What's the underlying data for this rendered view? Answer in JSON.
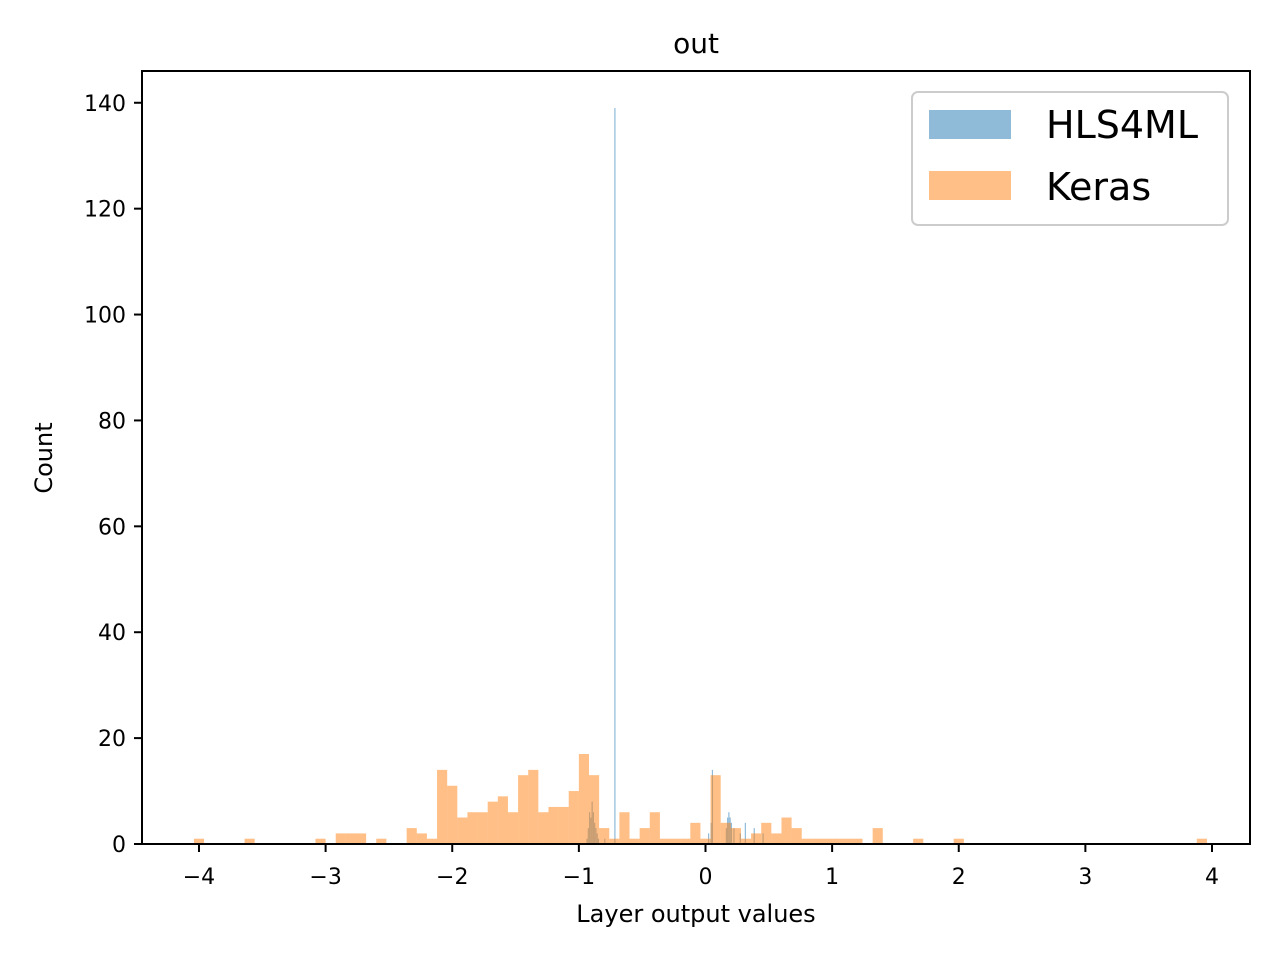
{
  "chart_data": {
    "type": "bar",
    "title": "out",
    "xlabel": "Layer output values",
    "ylabel": "Count",
    "xlim": [
      -4.45,
      4.3
    ],
    "ylim": [
      0,
      146
    ],
    "x_ticks": [
      -4,
      -3,
      -2,
      -1,
      0,
      1,
      2,
      3,
      4
    ],
    "x_tick_labels": [
      "−4",
      "−3",
      "−2",
      "−1",
      "0",
      "1",
      "2",
      "3",
      "4"
    ],
    "y_ticks": [
      0,
      20,
      40,
      60,
      80,
      100,
      120,
      140
    ],
    "y_tick_labels": [
      "0",
      "20",
      "40",
      "60",
      "80",
      "100",
      "120",
      "140"
    ],
    "grid": false,
    "legend_position": "top-right",
    "series": [
      {
        "name": "HLS4ML",
        "color": "#1f77b4",
        "opacity": 0.5,
        "bin_width": 0.008,
        "bins": [
          [
            -0.94,
            1
          ],
          [
            -0.93,
            3
          ],
          [
            -0.92,
            6
          ],
          [
            -0.91,
            5
          ],
          [
            -0.9,
            8
          ],
          [
            -0.89,
            6
          ],
          [
            -0.88,
            4
          ],
          [
            -0.87,
            3
          ],
          [
            -0.86,
            2
          ],
          [
            -0.85,
            1
          ],
          [
            -0.8,
            1
          ],
          [
            -0.72,
            139
          ],
          [
            0.02,
            2
          ],
          [
            0.04,
            4
          ],
          [
            0.05,
            14
          ],
          [
            0.16,
            3
          ],
          [
            0.17,
            5
          ],
          [
            0.18,
            6
          ],
          [
            0.19,
            5
          ],
          [
            0.2,
            4
          ],
          [
            0.22,
            3
          ],
          [
            0.27,
            2
          ],
          [
            0.31,
            4
          ],
          [
            0.38,
            3
          ],
          [
            0.45,
            2
          ]
        ]
      },
      {
        "name": "Keras",
        "color": "#ff7f0e",
        "opacity": 0.5,
        "bin_width": 0.08,
        "bins": [
          [
            -4.04,
            1
          ],
          [
            -3.64,
            1
          ],
          [
            -3.08,
            1
          ],
          [
            -2.92,
            2
          ],
          [
            -2.84,
            2
          ],
          [
            -2.76,
            2
          ],
          [
            -2.6,
            1
          ],
          [
            -2.36,
            3
          ],
          [
            -2.28,
            2
          ],
          [
            -2.2,
            1
          ],
          [
            -2.12,
            14
          ],
          [
            -2.04,
            11
          ],
          [
            -1.96,
            5
          ],
          [
            -1.88,
            6
          ],
          [
            -1.8,
            6
          ],
          [
            -1.72,
            8
          ],
          [
            -1.64,
            9
          ],
          [
            -1.56,
            6
          ],
          [
            -1.48,
            13
          ],
          [
            -1.4,
            14
          ],
          [
            -1.32,
            6
          ],
          [
            -1.24,
            7
          ],
          [
            -1.16,
            7
          ],
          [
            -1.08,
            10
          ],
          [
            -1.0,
            17
          ],
          [
            -0.92,
            13
          ],
          [
            -0.84,
            3
          ],
          [
            -0.76,
            1
          ],
          [
            -0.68,
            6
          ],
          [
            -0.6,
            1
          ],
          [
            -0.52,
            3
          ],
          [
            -0.44,
            6
          ],
          [
            -0.36,
            1
          ],
          [
            -0.28,
            1
          ],
          [
            -0.2,
            1
          ],
          [
            -0.12,
            4
          ],
          [
            -0.04,
            1
          ],
          [
            0.04,
            13
          ],
          [
            0.12,
            4
          ],
          [
            0.2,
            3
          ],
          [
            0.28,
            1
          ],
          [
            0.36,
            2
          ],
          [
            0.44,
            4
          ],
          [
            0.52,
            2
          ],
          [
            0.6,
            5
          ],
          [
            0.68,
            3
          ],
          [
            0.76,
            1
          ],
          [
            0.84,
            1
          ],
          [
            0.92,
            1
          ],
          [
            1.0,
            1
          ],
          [
            1.08,
            1
          ],
          [
            1.16,
            1
          ],
          [
            1.32,
            3
          ],
          [
            1.64,
            1
          ],
          [
            1.96,
            1
          ],
          [
            3.88,
            1
          ]
        ]
      }
    ]
  }
}
